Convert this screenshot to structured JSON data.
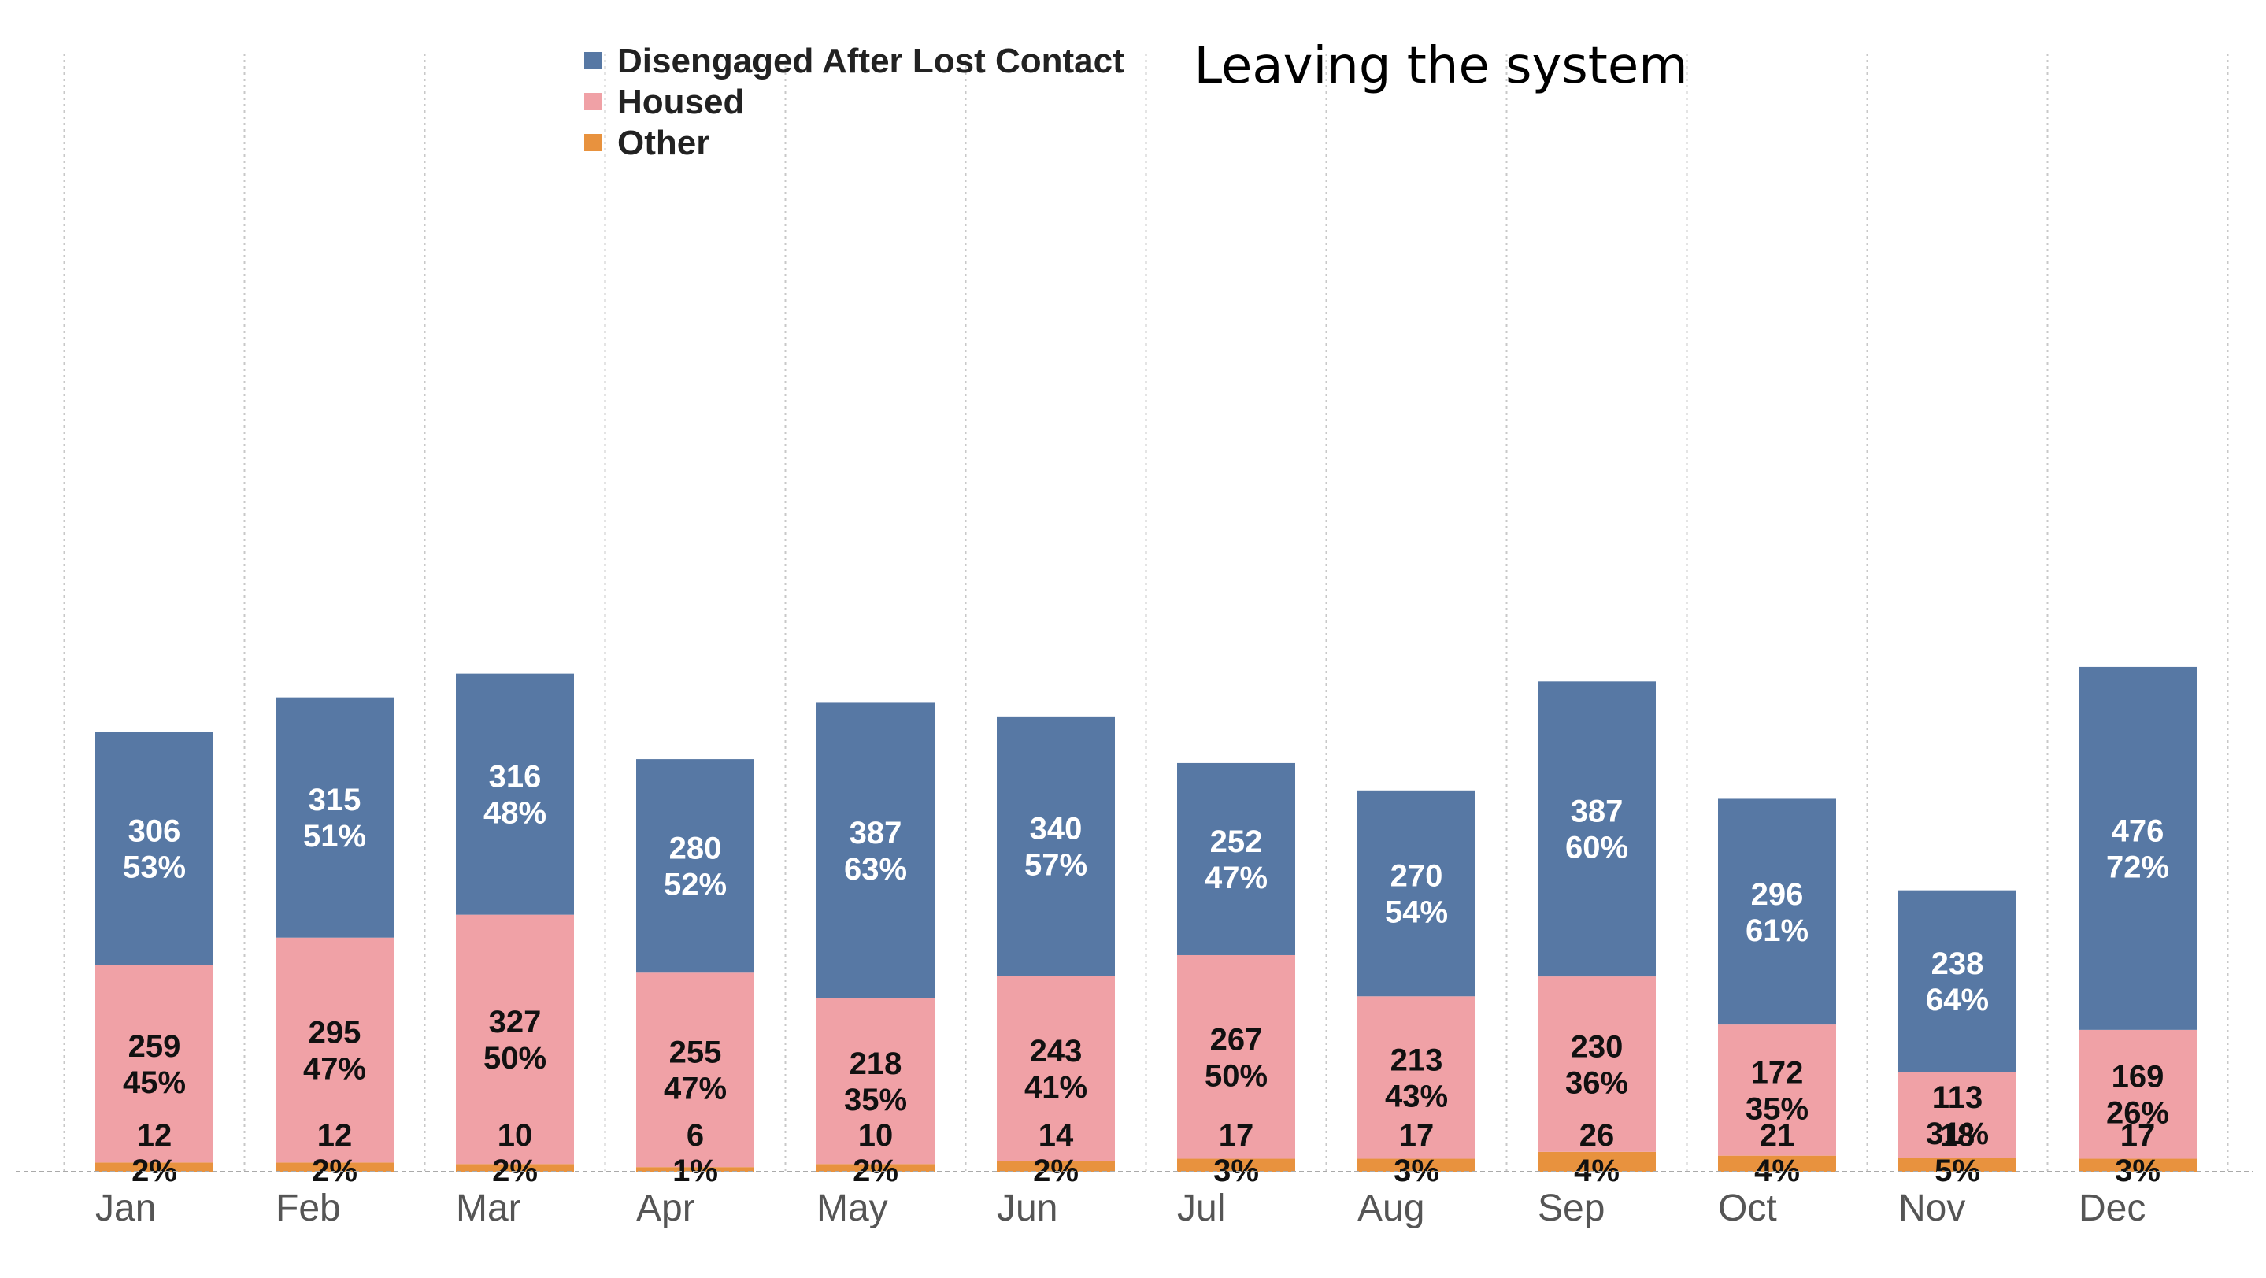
{
  "chart_data": {
    "type": "bar",
    "stacked": true,
    "title": "Leaving the system",
    "xlabel": "",
    "ylabel": "",
    "categories": [
      "Jan",
      "Feb",
      "Mar",
      "Apr",
      "May",
      "Jun",
      "Jul",
      "Aug",
      "Sep",
      "Oct",
      "Nov",
      "Dec"
    ],
    "series": [
      {
        "name": "Other",
        "color": "#e8923e",
        "values": [
          12,
          12,
          10,
          6,
          10,
          14,
          17,
          17,
          26,
          21,
          18,
          17
        ],
        "percent_labels": [
          "2%",
          "2%",
          "2%",
          "1%",
          "2%",
          "2%",
          "3%",
          "3%",
          "4%",
          "4%",
          "5%",
          "3%"
        ]
      },
      {
        "name": "Housed",
        "color": "#f0a1a6",
        "values": [
          259,
          295,
          327,
          255,
          218,
          243,
          267,
          213,
          230,
          172,
          113,
          169
        ],
        "percent_labels": [
          "45%",
          "47%",
          "50%",
          "47%",
          "35%",
          "41%",
          "50%",
          "43%",
          "36%",
          "35%",
          "31%",
          "26%"
        ]
      },
      {
        "name": "Disengaged After Lost Contact",
        "color": "#5778a4",
        "values": [
          306,
          315,
          316,
          280,
          387,
          340,
          252,
          270,
          387,
          296,
          238,
          476
        ],
        "percent_labels": [
          "53%",
          "51%",
          "48%",
          "52%",
          "63%",
          "57%",
          "47%",
          "54%",
          "60%",
          "61%",
          "64%",
          "72%"
        ]
      }
    ],
    "legend": {
      "position": "top-center",
      "order": [
        "Disengaged After Lost Contact",
        "Housed",
        "Other"
      ]
    },
    "ylim": [
      0,
      700
    ],
    "grid": {
      "vertical": true,
      "horizontal": false
    },
    "y_axis_visible": false
  }
}
